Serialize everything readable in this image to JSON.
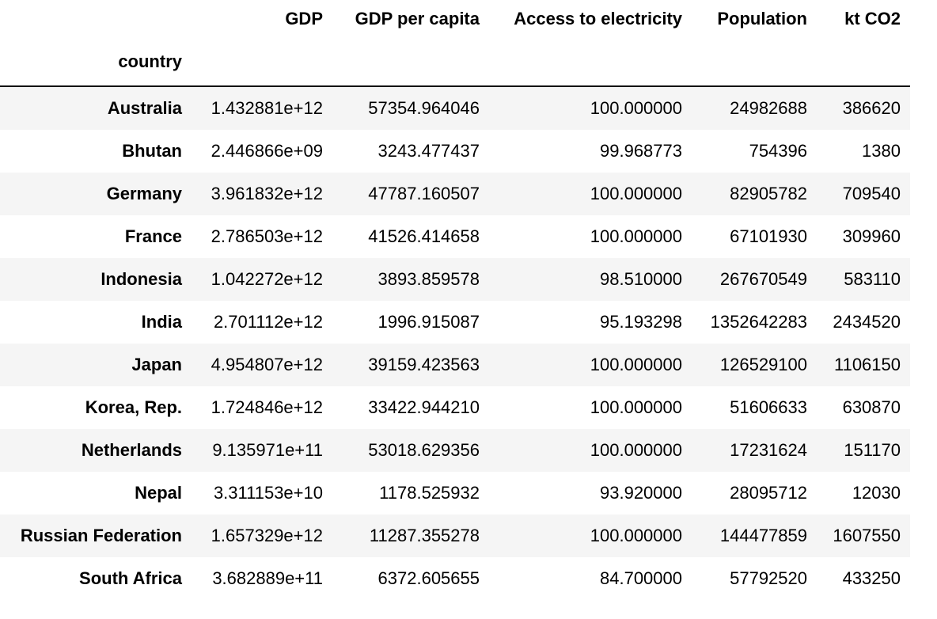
{
  "table": {
    "index_name": "country",
    "columns": [
      "GDP",
      "GDP per capita",
      "Access to electricity",
      "Population",
      "kt CO2"
    ],
    "rows": [
      {
        "country": "Australia",
        "values": [
          "1.432881e+12",
          "57354.964046",
          "100.000000",
          "24982688",
          "386620"
        ]
      },
      {
        "country": "Bhutan",
        "values": [
          "2.446866e+09",
          "3243.477437",
          "99.968773",
          "754396",
          "1380"
        ]
      },
      {
        "country": "Germany",
        "values": [
          "3.961832e+12",
          "47787.160507",
          "100.000000",
          "82905782",
          "709540"
        ]
      },
      {
        "country": "France",
        "values": [
          "2.786503e+12",
          "41526.414658",
          "100.000000",
          "67101930",
          "309960"
        ]
      },
      {
        "country": "Indonesia",
        "values": [
          "1.042272e+12",
          "3893.859578",
          "98.510000",
          "267670549",
          "583110"
        ]
      },
      {
        "country": "India",
        "values": [
          "2.701112e+12",
          "1996.915087",
          "95.193298",
          "1352642283",
          "2434520"
        ]
      },
      {
        "country": "Japan",
        "values": [
          "4.954807e+12",
          "39159.423563",
          "100.000000",
          "126529100",
          "1106150"
        ]
      },
      {
        "country": "Korea, Rep.",
        "values": [
          "1.724846e+12",
          "33422.944210",
          "100.000000",
          "51606633",
          "630870"
        ]
      },
      {
        "country": "Netherlands",
        "values": [
          "9.135971e+11",
          "53018.629356",
          "100.000000",
          "17231624",
          "151170"
        ]
      },
      {
        "country": "Nepal",
        "values": [
          "3.311153e+10",
          "1178.525932",
          "93.920000",
          "28095712",
          "12030"
        ]
      },
      {
        "country": "Russian Federation",
        "values": [
          "1.657329e+12",
          "11287.355278",
          "100.000000",
          "144477859",
          "1607550"
        ]
      },
      {
        "country": "South Africa",
        "values": [
          "3.682889e+11",
          "6372.605655",
          "84.700000",
          "57792520",
          "433250"
        ]
      }
    ]
  }
}
